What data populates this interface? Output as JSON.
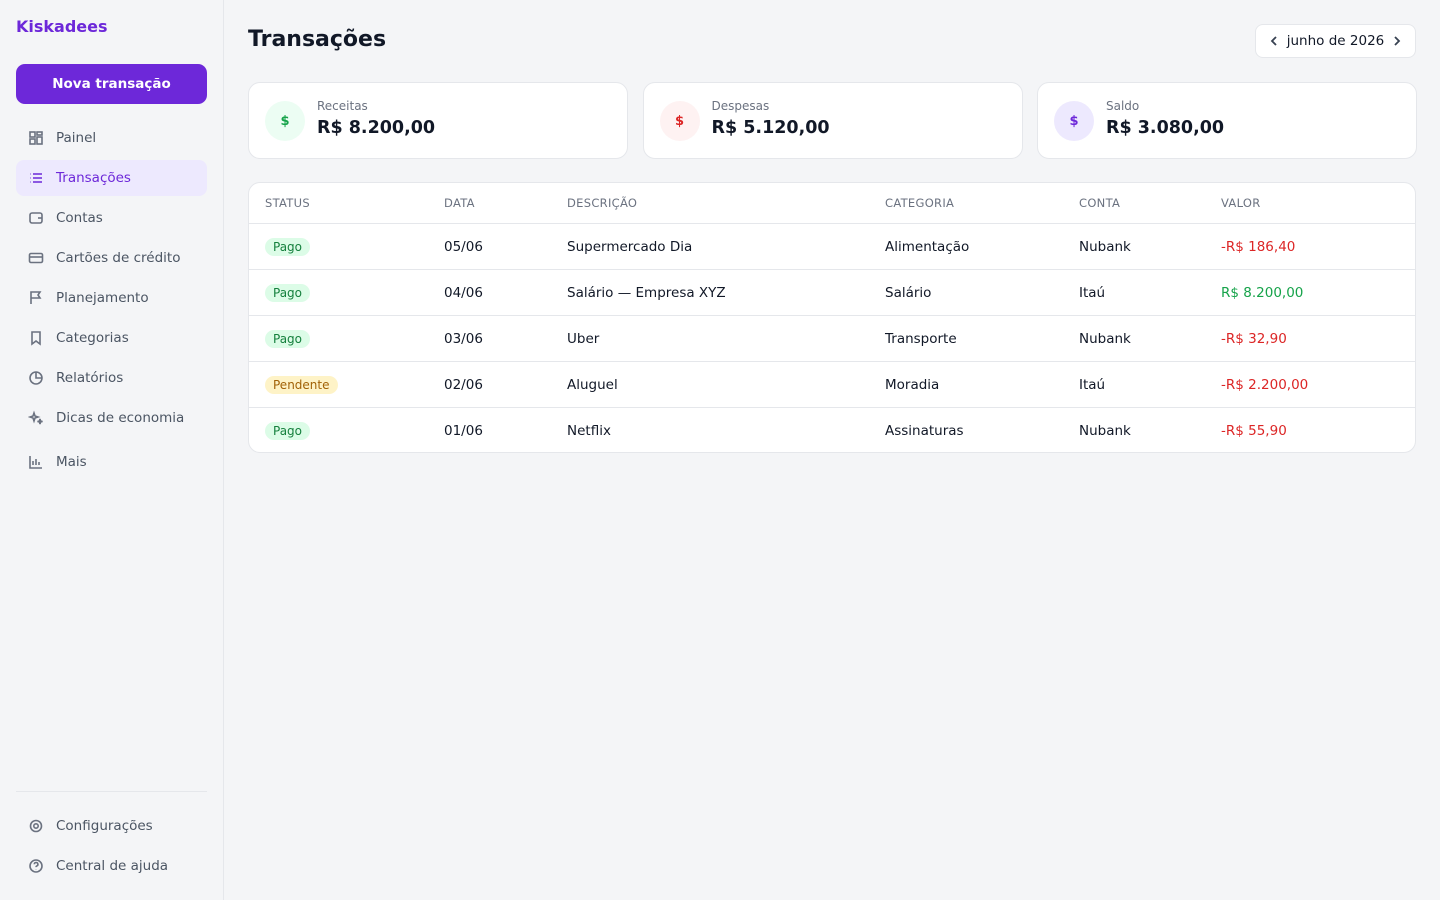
{
  "sidebar": {
    "brand": "Kiskadees",
    "new_button": "Nova transação",
    "nav": [
      "Painel",
      "Transações",
      "Contas",
      "Cartões de crédito",
      "Planejamento",
      "Categorias",
      "Relatórios",
      "Dicas de economia",
      "Mais"
    ],
    "footer_nav": [
      "Configurações",
      "Central de ajuda"
    ]
  },
  "header": {
    "title": "Transações",
    "period": "junho de 2026"
  },
  "summary": [
    {
      "label": "Receitas",
      "icon": "$",
      "amount": "R$ 8.200,00",
      "color": "#16a34a",
      "bg": "#ecfdf3"
    },
    {
      "label": "Despesas",
      "icon": "$",
      "amount": "R$ 5.120,00",
      "color": "#dc2626",
      "bg": "#fef2f2"
    },
    {
      "label": "Saldo",
      "icon": "$",
      "amount": "R$ 3.080,00",
      "color": "#6d28d9",
      "bg": "#ede9fe"
    }
  ],
  "table": {
    "columns": [
      "STATUS",
      "DATA",
      "DESCRIÇÃO",
      "CATEGORIA",
      "CONTA",
      "VALOR"
    ],
    "rows": [
      {
        "cells": [
          "Pago",
          "05/06",
          "Supermercado Dia",
          "Alimentação",
          "Nubank",
          "-R$ 186,40"
        ],
        "status_color": "#15803d",
        "status_bg": "#dcfce7",
        "value_color": "#dc2626"
      },
      {
        "cells": [
          "Pago",
          "04/06",
          "Salário — Empresa XYZ",
          "Salário",
          "Itaú",
          "R$ 8.200,00"
        ],
        "status_color": "#15803d",
        "status_bg": "#dcfce7",
        "value_color": "#16a34a"
      },
      {
        "cells": [
          "Pago",
          "03/06",
          "Uber",
          "Transporte",
          "Nubank",
          "-R$ 32,90"
        ],
        "status_color": "#15803d",
        "status_bg": "#dcfce7",
        "value_color": "#dc2626"
      },
      {
        "cells": [
          "Pendente",
          "02/06",
          "Aluguel",
          "Moradia",
          "Itaú",
          "-R$ 2.200,00"
        ],
        "status_color": "#a16207",
        "status_bg": "#fef3c7",
        "value_color": "#dc2626"
      },
      {
        "cells": [
          "Pago",
          "01/06",
          "Netflix",
          "Assinaturas",
          "Nubank",
          "-R$ 55,90"
        ],
        "status_color": "#15803d",
        "status_bg": "#dcfce7",
        "value_color": "#dc2626"
      }
    ]
  }
}
